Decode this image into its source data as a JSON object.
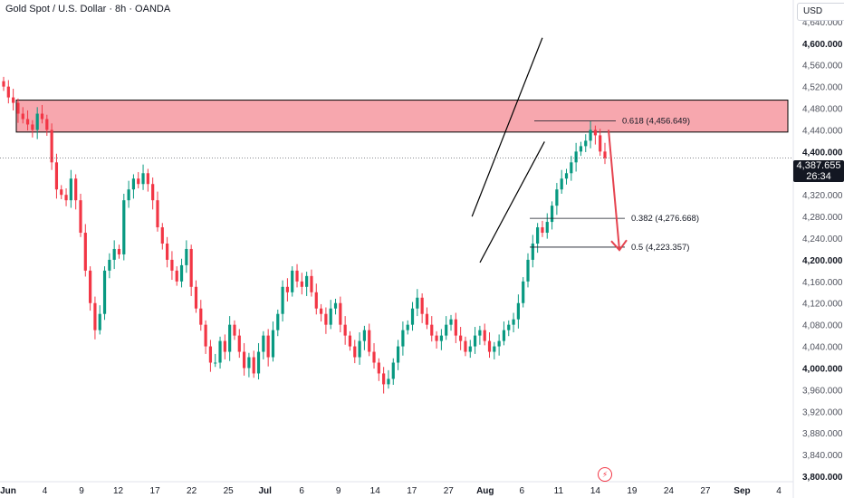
{
  "header": {
    "title": "Gold Spot / U.S. Dollar · 8h · OANDA",
    "currency": "USD"
  },
  "last_price": {
    "value": "4,387.655",
    "countdown": "26:34"
  },
  "colors": {
    "up": "#26a69a",
    "up_fill": "#ffffff",
    "candle_up": "#089981",
    "candle_down": "#f23645",
    "zone_fill": "#f7a7ae",
    "zone_border": "#000000",
    "arrow": "#e5434f",
    "text": "#131722",
    "axis_text": "#50535e"
  },
  "chart_data": {
    "type": "candlestick",
    "x_ticks": [
      "Jun",
      "4",
      "9",
      "12",
      "17",
      "22",
      "25",
      "Jul",
      "6",
      "9",
      "14",
      "17",
      "27",
      "Aug",
      "6",
      "11",
      "14",
      "19",
      "24",
      "27",
      "Sep",
      "4"
    ],
    "y_ticks": [
      "4,640.000",
      "4,600.000",
      "4,560.000",
      "4,520.000",
      "4,480.000",
      "4,440.000",
      "4,400.000",
      "4,360.000",
      "4,320.000",
      "4,280.000",
      "4,240.000",
      "4,200.000",
      "4,160.000",
      "4,120.000",
      "4,080.000",
      "4,040.000",
      "4,000.000",
      "3,960.000",
      "3,920.000",
      "3,880.000",
      "3,840.000",
      "3,800.000"
    ],
    "y_bold_ticks": [
      "4,600.000",
      "4,400.000",
      "4,200.000",
      "4,000.000",
      "3,800.000"
    ],
    "ylim": [
      3790,
      4680
    ],
    "close_path": [
      4520,
      4500,
      4490,
      4470,
      4460,
      4450,
      4440,
      4470,
      4460,
      4440,
      4380,
      4330,
      4320,
      4310,
      4350,
      4310,
      4250,
      4180,
      4120,
      4070,
      4100,
      4180,
      4200,
      4220,
      4210,
      4310,
      4330,
      4350,
      4340,
      4360,
      4340,
      4310,
      4260,
      4230,
      4200,
      4180,
      4160,
      4190,
      4220,
      4150,
      4110,
      4080,
      4040,
      4010,
      4010,
      4050,
      4030,
      4080,
      4060,
      4030,
      4000,
      4020,
      3990,
      4030,
      4060,
      4020,
      4070,
      4100,
      4150,
      4140,
      4180,
      4160,
      4150,
      4170,
      4140,
      4110,
      4100,
      4080,
      4110,
      4120,
      4080,
      4060,
      4040,
      4020,
      4050,
      4070,
      4030,
      4010,
      3990,
      3970,
      3980,
      4010,
      4040,
      4070,
      4080,
      4110,
      4130,
      4100,
      4080,
      4060,
      4050,
      4060,
      4080,
      4090,
      4060,
      4050,
      4030,
      4040,
      4060,
      4070,
      4050,
      4030,
      4040,
      4050,
      4070,
      4080,
      4090,
      4120,
      4160,
      4200,
      4230,
      4260,
      4250,
      4270,
      4300,
      4330,
      4350,
      4360,
      4380,
      4400,
      4410,
      4420,
      4440,
      4430,
      4400,
      4388
    ],
    "fib_levels": [
      {
        "label": "0.618 (4,456.649)",
        "value": 4456.649
      },
      {
        "label": "0.382 (4,276.668)",
        "value": 4276.668
      },
      {
        "label": "0.5 (4,223.357)",
        "value": 4223.357
      }
    ],
    "resistance_zone": [
      4436,
      4495
    ],
    "channel": {
      "lower_start": [
        0.605,
        4195
      ],
      "lower_end": [
        0.675,
        4435
      ],
      "upper_start": [
        0.595,
        4280
      ],
      "upper_end": [
        0.67,
        4560
      ]
    },
    "current_price": 4387.655
  }
}
